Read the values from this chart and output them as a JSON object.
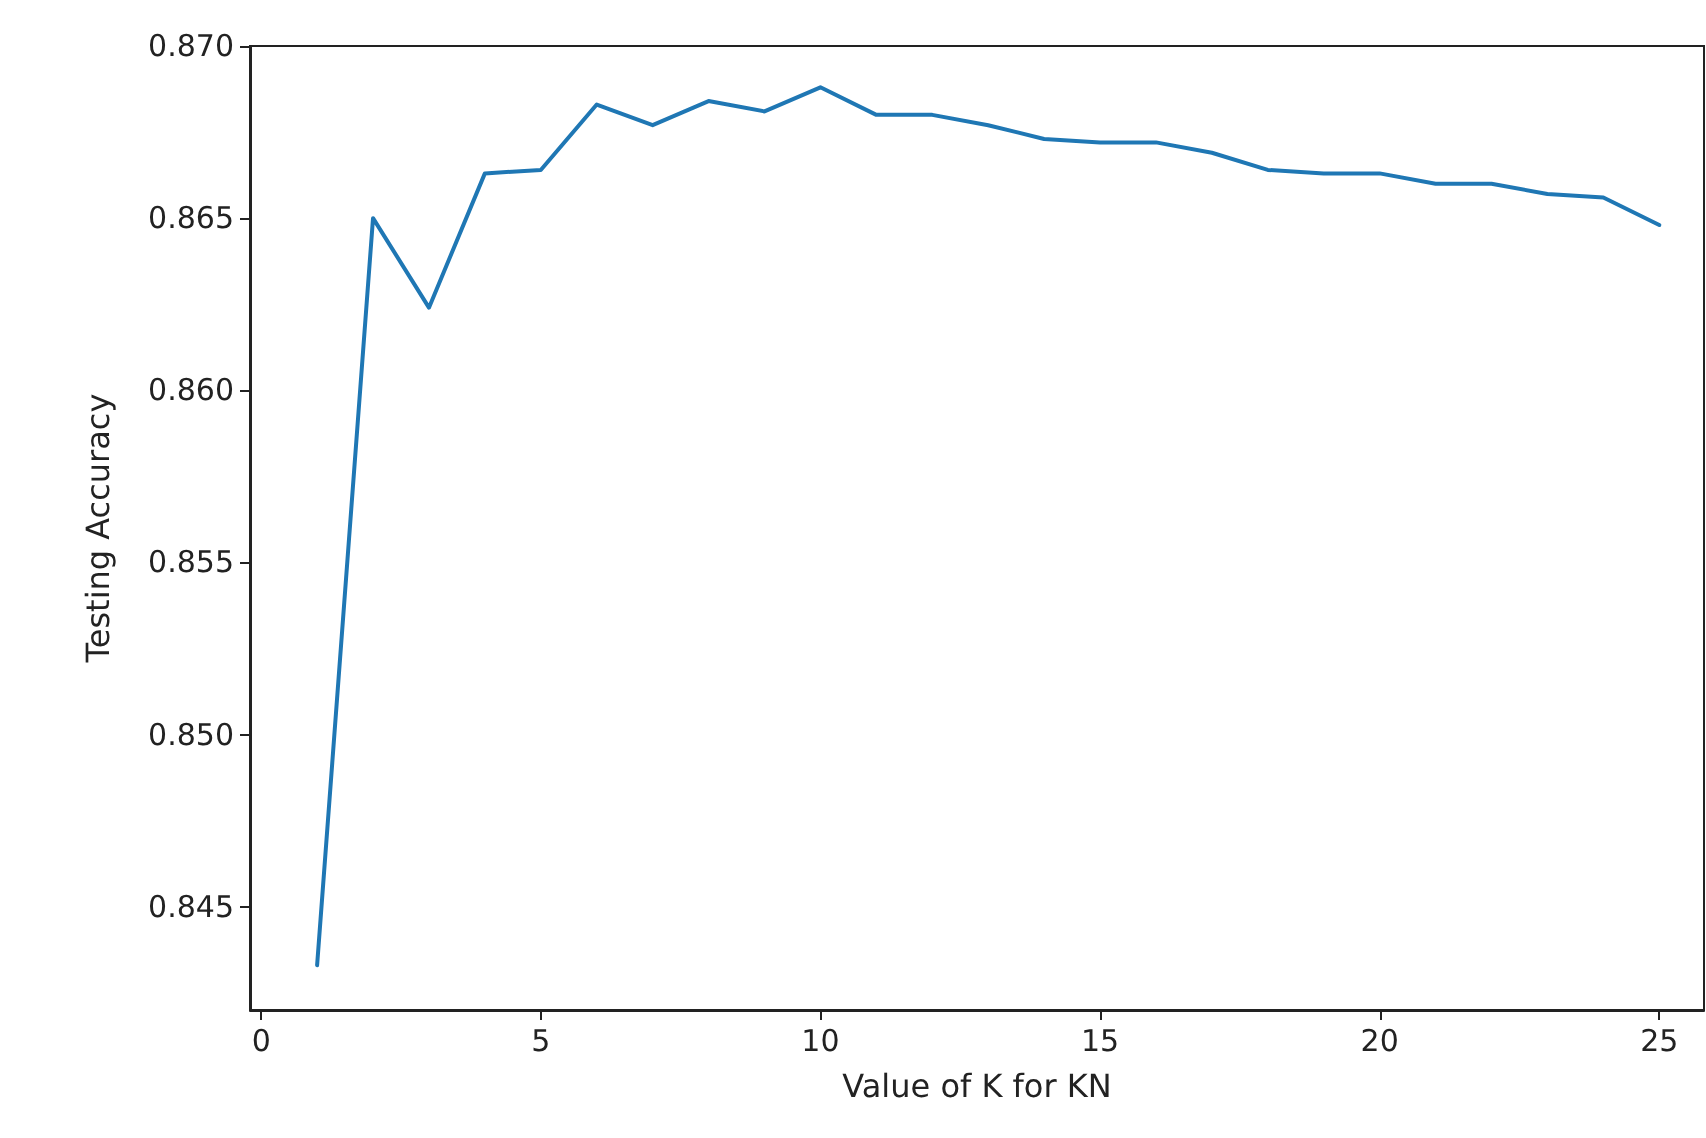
{
  "chart_data": {
    "type": "line",
    "xlabel": "Value of K for KN",
    "ylabel": "Testing Accuracy",
    "x": [
      1,
      2,
      3,
      4,
      5,
      6,
      7,
      8,
      9,
      10,
      11,
      12,
      13,
      14,
      15,
      16,
      17,
      18,
      19,
      20,
      21,
      22,
      23,
      24,
      25
    ],
    "series": [
      {
        "color": "#1f77b4",
        "values": [
          0.8433,
          0.865,
          0.8624,
          0.8663,
          0.8664,
          0.8683,
          0.8677,
          0.8684,
          0.8681,
          0.8688,
          0.868,
          0.868,
          0.8677,
          0.8673,
          0.8672,
          0.8672,
          0.8669,
          0.8664,
          0.8663,
          0.8663,
          0.866,
          0.866,
          0.8657,
          0.8656,
          0.8648
        ]
      }
    ],
    "xlim": [
      -0.2,
      25.8
    ],
    "xticks": [
      0,
      5,
      10,
      15,
      20,
      25
    ],
    "ylim": [
      0.842,
      0.87
    ],
    "yticks": [
      {
        "value": 0.845,
        "label": "0.845"
      },
      {
        "value": 0.85,
        "label": "0.850"
      },
      {
        "value": 0.855,
        "label": "0.855"
      },
      {
        "value": 0.86,
        "label": "0.860"
      },
      {
        "value": 0.865,
        "label": "0.865"
      },
      {
        "value": 0.87,
        "label": "0.870"
      }
    ],
    "grid": false,
    "marker": "none",
    "line_style": "solid"
  }
}
